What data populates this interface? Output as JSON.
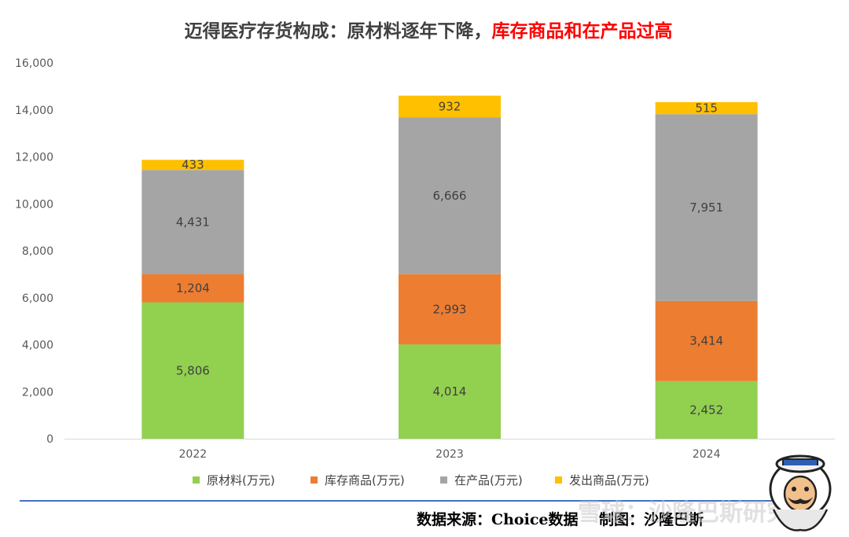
{
  "chart_data": {
    "type": "bar",
    "stacked": true,
    "title_parts": [
      {
        "text": "迈得医疗存货构成：原材料逐年下降，",
        "color": "#404040"
      },
      {
        "text": "库存商品和在产品过高",
        "color": "#ff0000"
      }
    ],
    "categories": [
      "2022",
      "2023",
      "2024"
    ],
    "series": [
      {
        "name": "原材料(万元)",
        "color": "#92d050",
        "values": [
          5806,
          4014,
          2452
        ],
        "labels": [
          "5,806",
          "4,014",
          "2,452"
        ]
      },
      {
        "name": "库存商品(万元)",
        "color": "#ed7d31",
        "values": [
          1204,
          2993,
          3414
        ],
        "labels": [
          "1,204",
          "2,993",
          "3,414"
        ]
      },
      {
        "name": "在产品(万元)",
        "color": "#a5a5a5",
        "values": [
          4431,
          6666,
          7951
        ],
        "labels": [
          "4,431",
          "6,666",
          "7,951"
        ]
      },
      {
        "name": "发出商品(万元)",
        "color": "#ffc000",
        "values": [
          433,
          932,
          515
        ],
        "labels": [
          "433",
          "932",
          "515"
        ]
      }
    ],
    "ylim": [
      0,
      16000
    ],
    "yticks": [
      0,
      2000,
      4000,
      6000,
      8000,
      10000,
      12000,
      14000,
      16000
    ],
    "ytick_labels": [
      "0",
      "2,000",
      "4,000",
      "6,000",
      "8,000",
      "10,000",
      "12,000",
      "14,000",
      "16,000"
    ],
    "grid": false,
    "legend_position": "bottom"
  },
  "footer": {
    "source_text": "数据来源：Choice数据",
    "author_text": "制图：沙隆巴斯",
    "watermark_text": "雪球：沙隆巴斯研究"
  },
  "colors": {
    "footer_rule": "#4472c4"
  }
}
